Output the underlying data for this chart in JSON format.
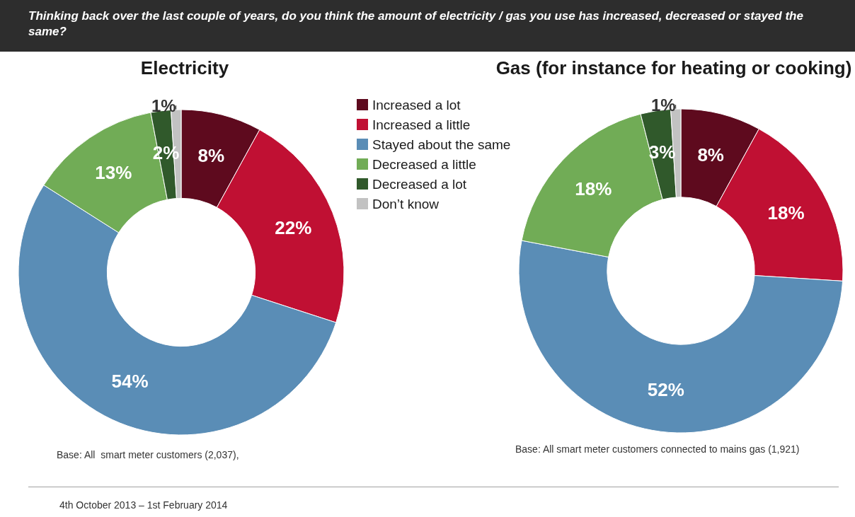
{
  "chart_data": [
    {
      "type": "donut",
      "title": "Electricity",
      "categories": [
        "Increased a lot",
        "Increased a little",
        "Stayed about the same",
        "Decreased a little",
        "Decreased a lot",
        "Don’t know"
      ],
      "values": [
        8,
        22,
        54,
        13,
        2,
        1
      ],
      "value_labels": [
        "8%",
        "22%",
        "54%",
        "13%",
        "2%",
        "1%"
      ],
      "colors": [
        "#5e0a1e",
        "#c01033",
        "#5a8db6",
        "#71ac56",
        "#30592b",
        "#c2c2c2"
      ],
      "legend": "right",
      "annotations": [
        "Thinking back over the last couple of years, do you think the amount of electricity / gas you use has increased, decreased or stayed the same?",
        "Base: All  smart meter customers (2,037),",
        "4th October 2013 – 1st February 2014"
      ]
    },
    {
      "type": "donut",
      "title": "Gas (for instance for heating or cooking)",
      "categories": [
        null,
        null,
        null,
        null,
        null,
        null
      ],
      "values": [
        8,
        18,
        52,
        18,
        3,
        1
      ],
      "value_labels": [
        "8%",
        "18%",
        "52%",
        "18%",
        "3%",
        "1%"
      ],
      "colors": [
        "#5e0a1e",
        "#c01033",
        "#5a8db6",
        "#71ac56",
        "#30592b",
        "#c2c2c2"
      ],
      "legend": false,
      "annotations": [
        "Base: All smart meter customers connected to mains gas (1,921)"
      ]
    }
  ]
}
